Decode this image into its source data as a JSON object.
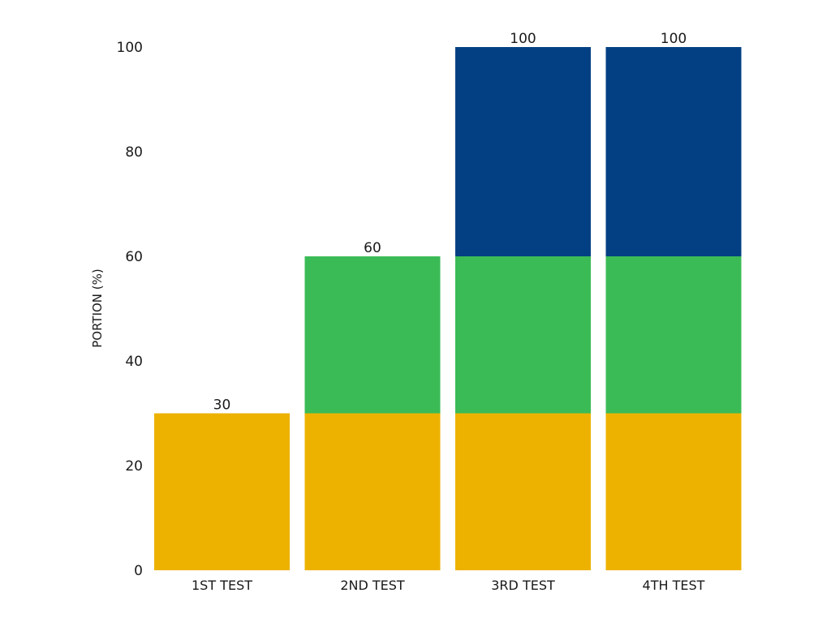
{
  "chart_data": {
    "type": "bar",
    "stacked": true,
    "title": "",
    "xlabel": "",
    "ylabel": "PORTION (%)",
    "ylim": [
      0,
      100
    ],
    "yticks": [
      0,
      20,
      40,
      60,
      80,
      100
    ],
    "categories": [
      "1ST TEST",
      "2ND TEST",
      "3RD TEST",
      "4TH TEST"
    ],
    "series": [
      {
        "color": "#EDB200",
        "values": [
          30,
          30,
          30,
          30
        ]
      },
      {
        "color": "#3BBB56",
        "values": [
          0,
          30,
          30,
          30
        ]
      },
      {
        "color": "#034083",
        "values": [
          0,
          0,
          40,
          40
        ]
      }
    ],
    "totals": [
      "30",
      "60",
      "100",
      "100"
    ],
    "grid": false,
    "legend": "none"
  }
}
